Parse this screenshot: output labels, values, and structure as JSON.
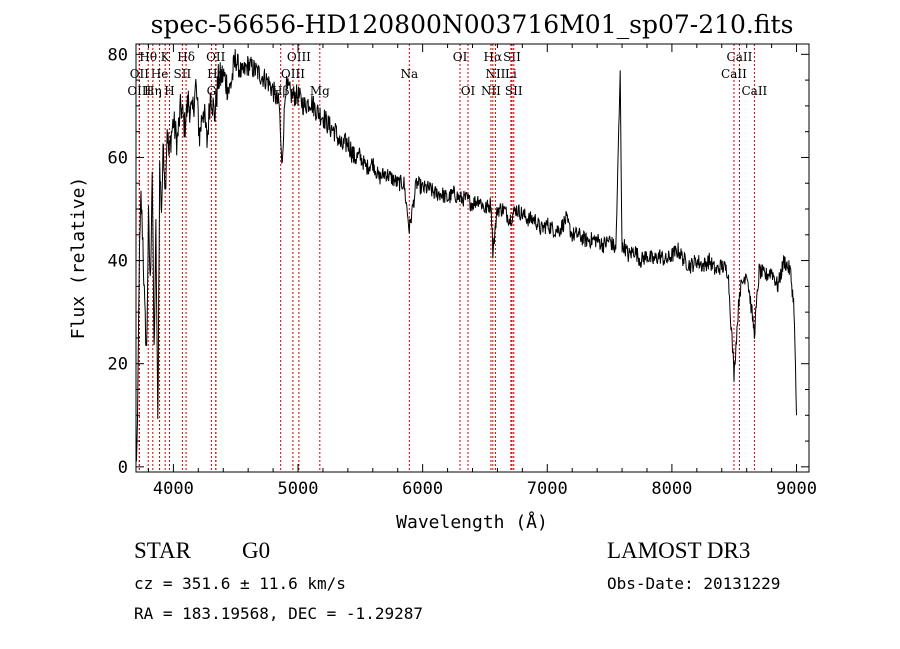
{
  "chart_data": {
    "type": "line",
    "title": "spec-56656-HD120800N003716M01_sp07-210.fits",
    "xlabel": "Wavelength (Å)",
    "ylabel": "Flux (relative)",
    "xlim": [
      3700,
      9100
    ],
    "ylim": [
      -1,
      82
    ],
    "xticks": [
      4000,
      5000,
      6000,
      7000,
      8000,
      9000
    ],
    "yticks": [
      0,
      20,
      40,
      60,
      80
    ],
    "grid": false,
    "series": [
      {
        "color": "#000000",
        "x": [
          3700,
          3712,
          3725,
          3740,
          3755,
          3770,
          3785,
          3800,
          3815,
          3830,
          3845,
          3860,
          3875,
          3890,
          3905,
          3920,
          3935,
          3950,
          3965,
          3980,
          4000,
          4030,
          4060,
          4090,
          4120,
          4150,
          4180,
          4210,
          4240,
          4270,
          4300,
          4330,
          4360,
          4400,
          4450,
          4500,
          4550,
          4600,
          4650,
          4700,
          4750,
          4800,
          4850,
          4870,
          4900,
          4950,
          5000,
          5050,
          5100,
          5150,
          5200,
          5250,
          5300,
          5350,
          5400,
          5450,
          5500,
          5550,
          5600,
          5650,
          5700,
          5750,
          5800,
          5850,
          5893,
          5950,
          6000,
          6050,
          6100,
          6150,
          6200,
          6250,
          6300,
          6350,
          6400,
          6450,
          6500,
          6550,
          6563,
          6600,
          6650,
          6700,
          6750,
          6800,
          6850,
          6900,
          6950,
          7000,
          7050,
          7100,
          7150,
          7200,
          7250,
          7300,
          7350,
          7400,
          7450,
          7500,
          7550,
          7585,
          7600,
          7615,
          7650,
          7700,
          7750,
          7800,
          7850,
          7900,
          7950,
          8000,
          8050,
          8100,
          8150,
          8200,
          8250,
          8300,
          8350,
          8400,
          8450,
          8498,
          8542,
          8600,
          8662,
          8700,
          8750,
          8800,
          8850,
          8900,
          8950,
          8980,
          9000
        ],
        "values": [
          0.5,
          6,
          38,
          52,
          44,
          30,
          22,
          48,
          35,
          58,
          22,
          46,
          8,
          58,
          50,
          63,
          54,
          66,
          60,
          64,
          67,
          63,
          70,
          66,
          71,
          68,
          74,
          64,
          70,
          63,
          73,
          68,
          75,
          76,
          73,
          79,
          76,
          78,
          77,
          76,
          75,
          73,
          70,
          58,
          74,
          72,
          72,
          70,
          71,
          69,
          68,
          66,
          65,
          62,
          63,
          60,
          60,
          58,
          59,
          56,
          57,
          56,
          55,
          55,
          46,
          55,
          54,
          54,
          53,
          53,
          52,
          53,
          52,
          52,
          51,
          52,
          50,
          51,
          42,
          50,
          50,
          48,
          50,
          49,
          48,
          48,
          46,
          47,
          46,
          46,
          48,
          45,
          45,
          44,
          44,
          44,
          43,
          44,
          42,
          76,
          42,
          43,
          41,
          42,
          40,
          41,
          40,
          41,
          40,
          41,
          42,
          40,
          39,
          40,
          39,
          40,
          38,
          39,
          38,
          18,
          34,
          38,
          26,
          38,
          37,
          38,
          35,
          40,
          38,
          31,
          10
        ]
      }
    ],
    "line_marks": [
      {
        "label": "Hθ",
        "x": 3798,
        "row": 0
      },
      {
        "label": "OII",
        "x": 3727,
        "row": 1
      },
      {
        "label": "OIII",
        "x": 3727,
        "row": 2
      },
      {
        "label": "He",
        "x": 3889,
        "row": 1
      },
      {
        "label": "Hη",
        "x": 3835,
        "row": 2
      },
      {
        "label": "K",
        "x": 3934,
        "row": 0
      },
      {
        "label": "H",
        "x": 3969,
        "row": 2
      },
      {
        "label": "Hδ",
        "x": 4102,
        "row": 0
      },
      {
        "label": "SII",
        "x": 4072,
        "row": 1
      },
      {
        "label": "OII",
        "x": 4340,
        "row": 0
      },
      {
        "label": "Hγ",
        "x": 4341,
        "row": 1
      },
      {
        "label": "G",
        "x": 4305,
        "row": 2
      },
      {
        "label": "OIII",
        "x": 5007,
        "row": 0
      },
      {
        "label": "OIII",
        "x": 4959,
        "row": 1
      },
      {
        "label": "Hβ",
        "x": 4861,
        "row": 2
      },
      {
        "label": "Mg",
        "x": 5175,
        "row": 2
      },
      {
        "label": "Na",
        "x": 5893,
        "row": 1
      },
      {
        "label": "OI",
        "x": 6300,
        "row": 0
      },
      {
        "label": "OI",
        "x": 6364,
        "row": 2
      },
      {
        "label": "Hα",
        "x": 6563,
        "row": 0
      },
      {
        "label": "NII",
        "x": 6584,
        "row": 1
      },
      {
        "label": "NII",
        "x": 6548,
        "row": 2
      },
      {
        "label": "SII",
        "x": 6717,
        "row": 0
      },
      {
        "label": "Li",
        "x": 6708,
        "row": 1
      },
      {
        "label": "SII",
        "x": 6731,
        "row": 2
      },
      {
        "label": "CaII",
        "x": 8542,
        "row": 0
      },
      {
        "label": "CaII",
        "x": 8498,
        "row": 1
      },
      {
        "label": "CaII",
        "x": 8662,
        "row": 2
      }
    ],
    "line_color": "#cc0000"
  },
  "info": {
    "object_class": "STAR",
    "subclass": "G0",
    "survey": "LAMOST DR3",
    "cz": "cz = 351.6 ± 11.6 km/s",
    "obs_date": "Obs-Date: 20131229",
    "coords": "RA = 183.19568, DEC =  -1.29287"
  }
}
